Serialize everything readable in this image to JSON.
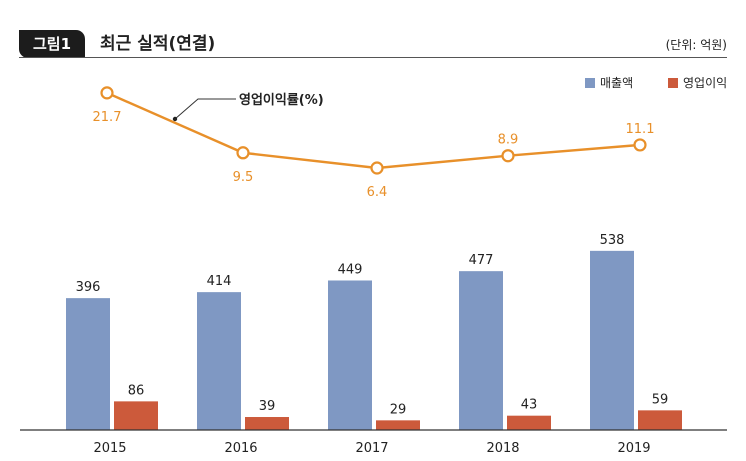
{
  "header": {
    "badge": "그림1",
    "title": "최근 실적(연결)",
    "unit": "(단위: 억원)"
  },
  "chart_data": {
    "type": "bar",
    "categories": [
      "2015",
      "2016",
      "2017",
      "2018",
      "2019"
    ],
    "series": [
      {
        "name": "매출액",
        "values": [
          396,
          414,
          449,
          477,
          538
        ],
        "color": "#7f98c3"
      },
      {
        "name": "영업이익",
        "values": [
          86,
          39,
          29,
          43,
          59
        ],
        "color": "#cc5a3b"
      }
    ],
    "line_series": {
      "name": "영업이익률(%)",
      "values": [
        21.7,
        9.5,
        6.4,
        8.9,
        11.1
      ],
      "labels": [
        "21.7",
        "9.5",
        "6.4",
        "8.9",
        "11.1"
      ],
      "color": "#e8902a",
      "type": "line"
    },
    "legend": [
      "매출액",
      "영업이익"
    ],
    "legend_position": "top-right",
    "grid": false,
    "ylim": [
      0,
      600
    ]
  }
}
